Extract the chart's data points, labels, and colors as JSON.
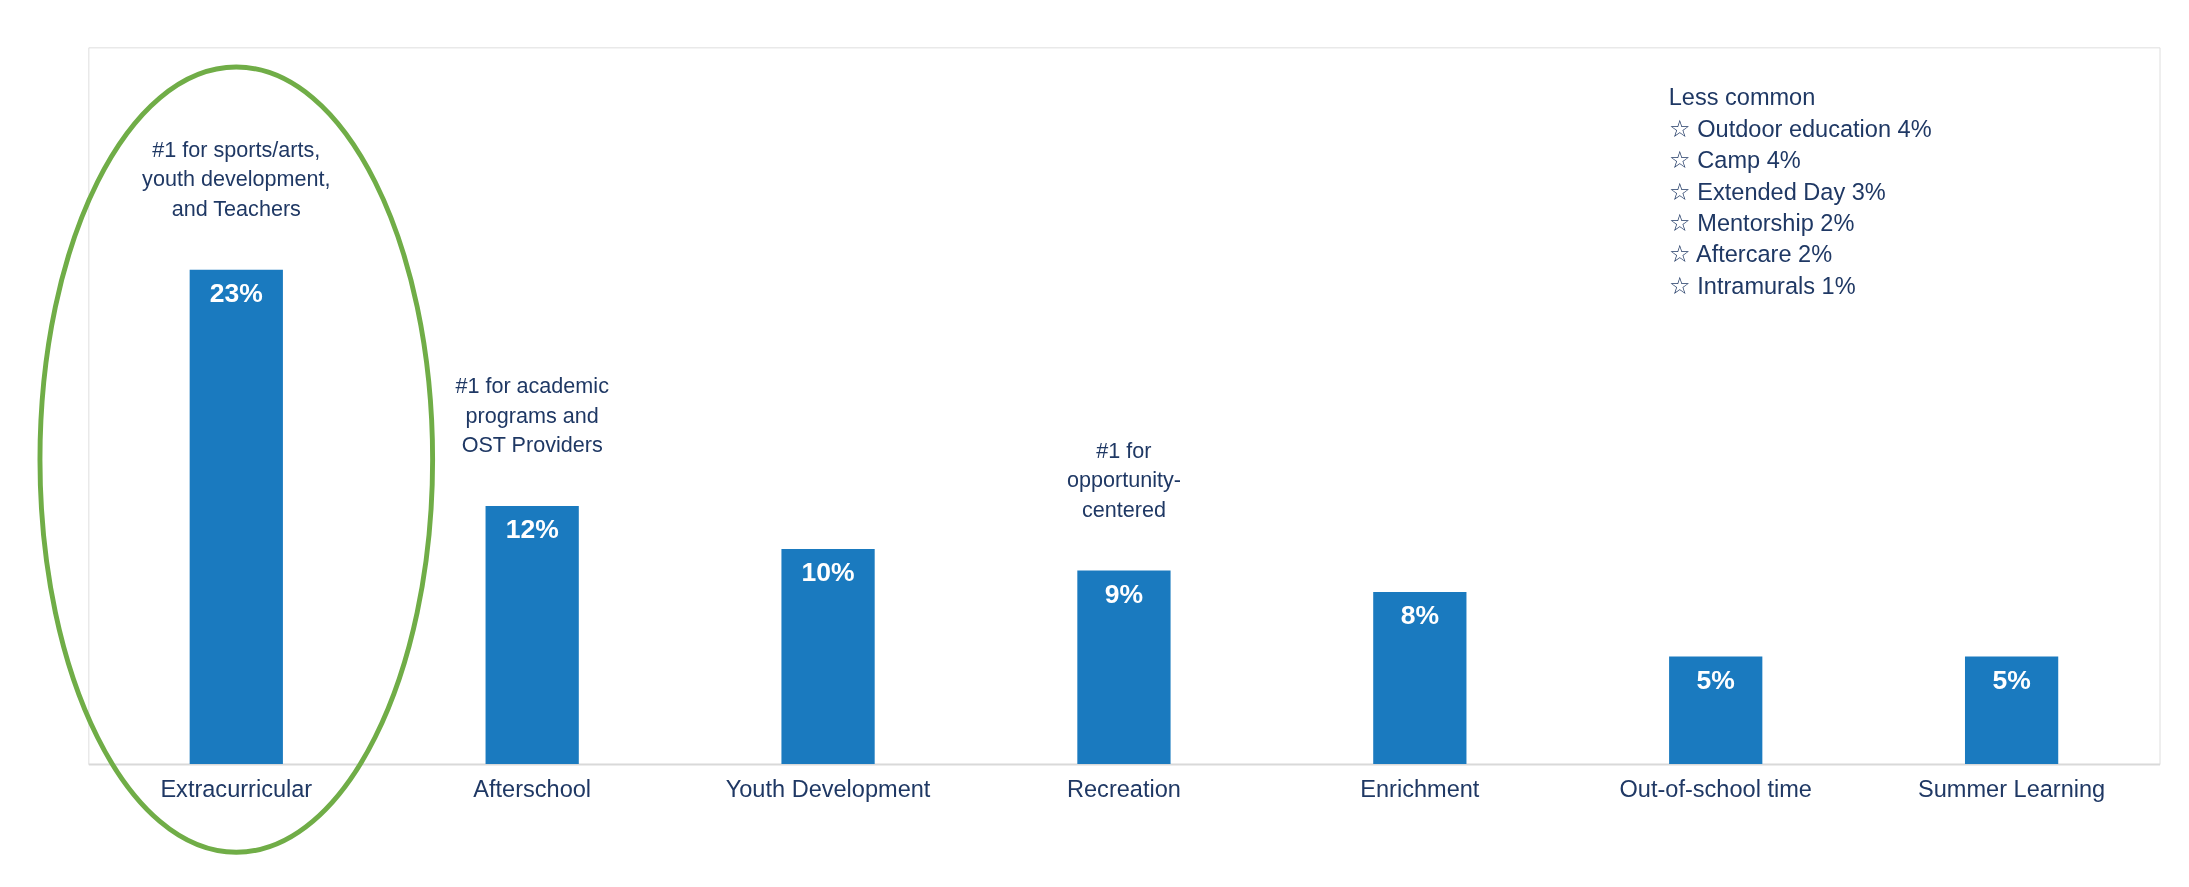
{
  "chart_data": {
    "type": "bar",
    "categories": [
      "Extracurricular",
      "Afterschool",
      "Youth Development",
      "Recreation",
      "Enrichment",
      "Out-of-school time",
      "Summer Learning"
    ],
    "values": [
      23,
      12,
      10,
      9,
      8,
      5,
      5
    ],
    "value_labels": [
      "23%",
      "12%",
      "10%",
      "9%",
      "8%",
      "5%",
      "5%"
    ],
    "color": "#1a7abf",
    "annotations": [
      {
        "text": "#1 for sports/arts,\nyouth development,\nand Teachers",
        "x": "Extracurricular",
        "y": 23
      },
      {
        "text": "#1 for academic\nprograms and\nOST Providers",
        "x": "Afterschool",
        "y": 12
      },
      {
        "text": "#1 for\nopportunity-\ncentered",
        "x": "Recreation",
        "y": 9
      },
      "Less common\n☆ Outdoor education 4%\n☆ Camp 4%\n☆ Extended Day 3%\n☆ Mentorship 2%\n☆ Aftercare 2%\n☆ Intramurals 1%"
    ]
  }
}
